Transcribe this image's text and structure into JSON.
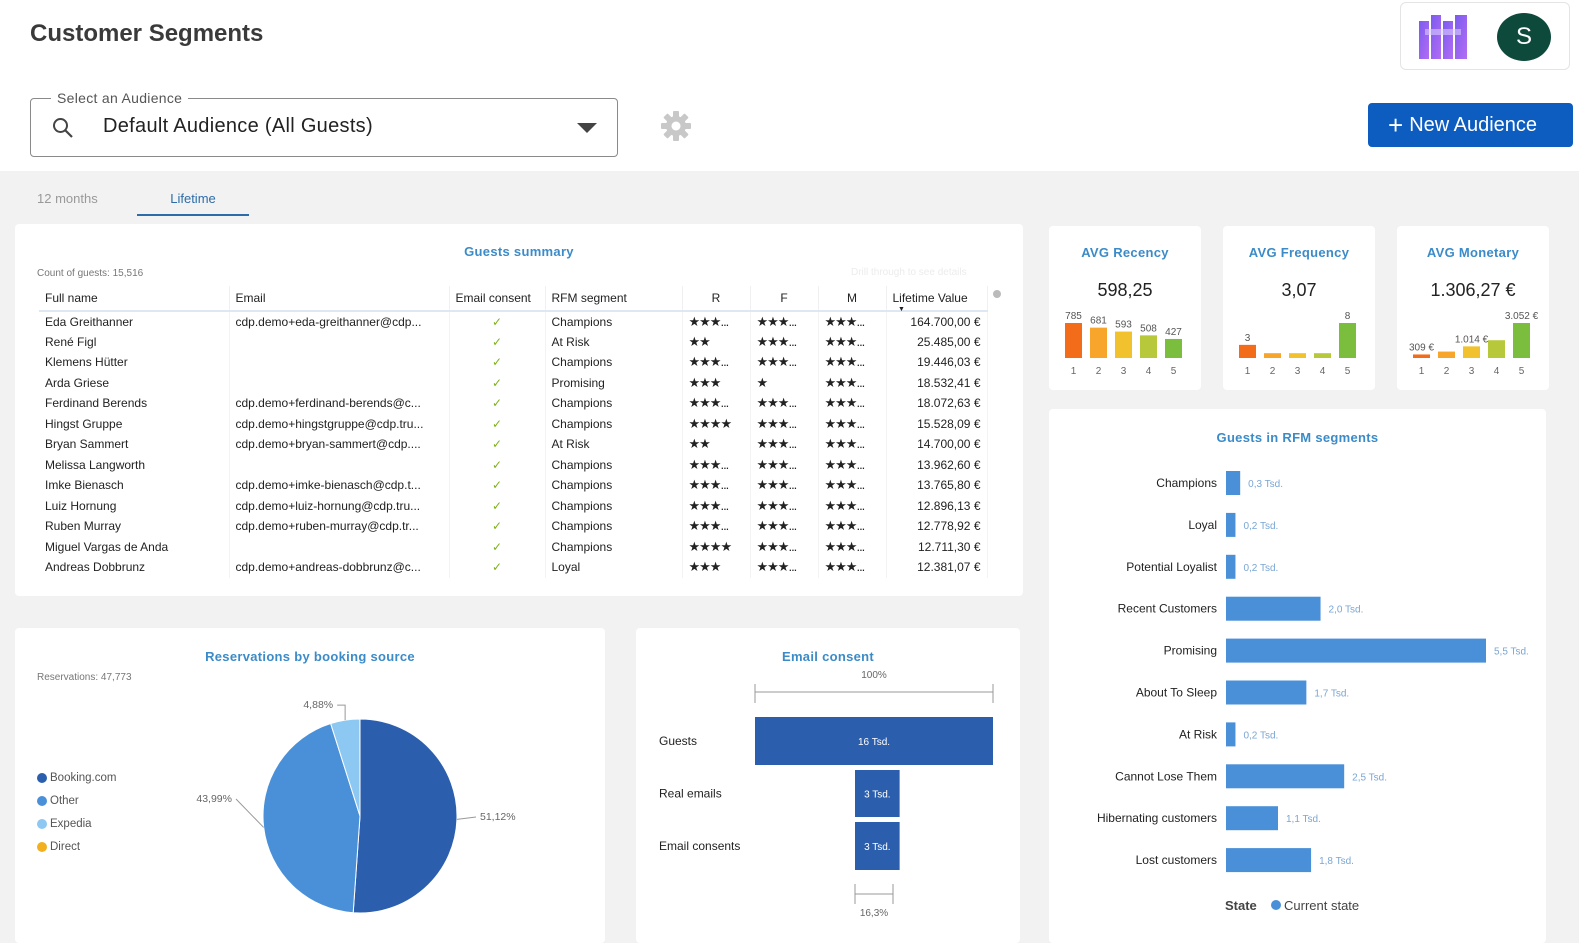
{
  "page_title": "Customer Segments",
  "user": {
    "avatar_initial": "S"
  },
  "audience": {
    "legend": "Select an Audience",
    "value": "Default Audience (All Guests)"
  },
  "new_audience_label": "New Audience",
  "tabs": [
    {
      "label": "12 months"
    },
    {
      "label": "Lifetime"
    }
  ],
  "guests_summary": {
    "title": "Guests summary",
    "count_label": "Count of guests: 15,516",
    "hint": "Drill through to see details",
    "columns": [
      "Full name",
      "Email",
      "Email consent",
      "RFM segment",
      "R",
      "F",
      "M",
      "Lifetime Value"
    ],
    "rows": [
      {
        "name": "Eda Greithanner",
        "email": "cdp.demo+eda-greithanner@cdp...",
        "consent": "✓",
        "segment": "Champions",
        "r": "★★★...",
        "r_color": "green",
        "f": "★★★...",
        "f_color": "green",
        "m": "★★★...",
        "m_color": "green",
        "value": "164.700,00 €"
      },
      {
        "name": "René Figl",
        "email": "",
        "consent": "✓",
        "segment": "At Risk",
        "r": "★★",
        "r_color": "red",
        "f": "★★★...",
        "f_color": "green",
        "m": "★★★...",
        "m_color": "green",
        "value": "25.485,00 €"
      },
      {
        "name": "Klemens Hütter",
        "email": "",
        "consent": "✓",
        "segment": "Champions",
        "r": "★★★...",
        "r_color": "green",
        "f": "★★★...",
        "f_color": "green",
        "m": "★★★...",
        "m_color": "green",
        "value": "19.446,03 €"
      },
      {
        "name": "Arda Griese",
        "email": "",
        "consent": "✓",
        "segment": "Promising",
        "r": "★★★",
        "r_color": "orange",
        "f": "★",
        "f_color": "red",
        "m": "★★★...",
        "m_color": "green",
        "value": "18.532,41 €"
      },
      {
        "name": "Ferdinand Berends",
        "email": "cdp.demo+ferdinand-berends@c...",
        "consent": "✓",
        "segment": "Champions",
        "r": "★★★...",
        "r_color": "green",
        "f": "★★★...",
        "f_color": "green",
        "m": "★★★...",
        "m_color": "green",
        "value": "18.072,63 €"
      },
      {
        "name": "Hingst Gruppe",
        "email": "cdp.demo+hingstgruppe@cdp.tru...",
        "consent": "✓",
        "segment": "Champions",
        "r": "★★★★",
        "r_color": "green",
        "f": "★★★...",
        "f_color": "green",
        "m": "★★★...",
        "m_color": "green",
        "value": "15.528,09 €"
      },
      {
        "name": "Bryan Sammert",
        "email": "cdp.demo+bryan-sammert@cdp....",
        "consent": "✓",
        "segment": "At Risk",
        "r": "★★",
        "r_color": "red",
        "f": "★★★...",
        "f_color": "green",
        "m": "★★★...",
        "m_color": "green",
        "value": "14.700,00 €"
      },
      {
        "name": "Melissa Langworth",
        "email": "",
        "consent": "✓",
        "segment": "Champions",
        "r": "★★★...",
        "r_color": "green",
        "f": "★★★...",
        "f_color": "green",
        "m": "★★★...",
        "m_color": "green",
        "value": "13.962,60 €"
      },
      {
        "name": "Imke Bienasch",
        "email": "cdp.demo+imke-bienasch@cdp.t...",
        "consent": "✓",
        "segment": "Champions",
        "r": "★★★...",
        "r_color": "green",
        "f": "★★★...",
        "f_color": "green",
        "m": "★★★...",
        "m_color": "green",
        "value": "13.765,80 €"
      },
      {
        "name": "Luiz Hornung",
        "email": "cdp.demo+luiz-hornung@cdp.tru...",
        "consent": "✓",
        "segment": "Champions",
        "r": "★★★...",
        "r_color": "green",
        "f": "★★★...",
        "f_color": "green",
        "m": "★★★...",
        "m_color": "green",
        "value": "12.896,13 €"
      },
      {
        "name": "Ruben Murray",
        "email": "cdp.demo+ruben-murray@cdp.tr...",
        "consent": "✓",
        "segment": "Champions",
        "r": "★★★...",
        "r_color": "green",
        "f": "★★★...",
        "f_color": "green",
        "m": "★★★...",
        "m_color": "green",
        "value": "12.778,92 €"
      },
      {
        "name": "Miguel Vargas de Anda",
        "email": "",
        "consent": "✓",
        "segment": "Champions",
        "r": "★★★★",
        "r_color": "green",
        "f": "★★★...",
        "f_color": "green",
        "m": "★★★...",
        "m_color": "green",
        "value": "12.711,30 €"
      },
      {
        "name": "Andreas Dobbrunz",
        "email": "cdp.demo+andreas-dobbrunz@c...",
        "consent": "✓",
        "segment": "Loyal",
        "r": "★★★",
        "r_color": "orange",
        "f": "★★★...",
        "f_color": "green",
        "m": "★★★...",
        "m_color": "green",
        "value": "12.381,07 €"
      }
    ]
  },
  "kpis": [
    {
      "title": "AVG Recency",
      "value": "598,25"
    },
    {
      "title": "AVG Frequency",
      "value": "3,07"
    },
    {
      "title": "AVG Monetary",
      "value": "1.306,27 €"
    }
  ],
  "colors": {
    "bucket_1": "#f26c1a",
    "bucket_2": "#f7a52b",
    "bucket_3": "#f2c12e",
    "bucket_4": "#b7c93a",
    "bucket_5": "#7bbd3c",
    "accent": "#0d5cbf",
    "bar_blue": "#4a90d9",
    "dark_blue": "#2b5fad"
  },
  "chart_data": [
    {
      "type": "bar",
      "title": "AVG Recency",
      "categories": [
        "1",
        "2",
        "3",
        "4",
        "5"
      ],
      "values": [
        785,
        681,
        593,
        508,
        427
      ],
      "labels": [
        "785",
        "681",
        "593",
        "508",
        "427"
      ]
    },
    {
      "type": "bar",
      "title": "AVG Frequency",
      "categories": [
        "1",
        "2",
        "3",
        "4",
        "5"
      ],
      "values": [
        3,
        1.1,
        1.1,
        1.1,
        8
      ],
      "labels": [
        "3",
        "",
        "",
        "",
        "8"
      ]
    },
    {
      "type": "bar",
      "title": "AVG Monetary",
      "categories": [
        "1",
        "2",
        "3",
        "4",
        "5"
      ],
      "values": [
        309,
        560,
        1014,
        1550,
        3052
      ],
      "labels": [
        "309 €",
        "",
        "1.014 €",
        "",
        "3.052 €"
      ]
    },
    {
      "type": "bar",
      "orientation": "horizontal",
      "title": "Guests in RFM segments",
      "categories": [
        "Champions",
        "Loyal",
        "Potential Loyalist",
        "Recent Customers",
        "Promising",
        "About To Sleep",
        "At Risk",
        "Cannot Lose Them",
        "Hibernating customers",
        "Lost customers"
      ],
      "values": [
        0.3,
        0.2,
        0.2,
        2.0,
        5.5,
        1.7,
        0.2,
        2.5,
        1.1,
        1.8
      ],
      "labels": [
        "0,3 Tsd.",
        "0,2 Tsd.",
        "0,2 Tsd.",
        "2,0 Tsd.",
        "5,5 Tsd.",
        "1,7 Tsd.",
        "0,2 Tsd.",
        "2,5 Tsd.",
        "1,1 Tsd.",
        "1,8 Tsd."
      ],
      "legend_title": "State",
      "series_name": "Current state"
    },
    {
      "type": "pie",
      "title": "Reservations by booking source",
      "subtitle": "Reservations: 47,773",
      "slices": [
        {
          "name": "Booking.com",
          "value": 51.12,
          "label": "51,12%",
          "color": "#2b5fad"
        },
        {
          "name": "Other",
          "value": 43.99,
          "label": "43,99%",
          "color": "#4a90d9"
        },
        {
          "name": "Expedia",
          "value": 4.88,
          "label": "4,88%",
          "color": "#8cc8f2"
        },
        {
          "name": "Direct",
          "value": 0.01,
          "label": "",
          "color": "#f2b01e"
        }
      ]
    },
    {
      "type": "bar",
      "orientation": "horizontal",
      "title": "Email consent",
      "categories": [
        "Guests",
        "Real emails",
        "Email consents"
      ],
      "values": [
        16,
        3,
        3
      ],
      "labels": [
        "16 Tsd.",
        "3 Tsd.",
        "3 Tsd."
      ],
      "top_label": "100%",
      "bottom_label": "16,3%"
    }
  ]
}
